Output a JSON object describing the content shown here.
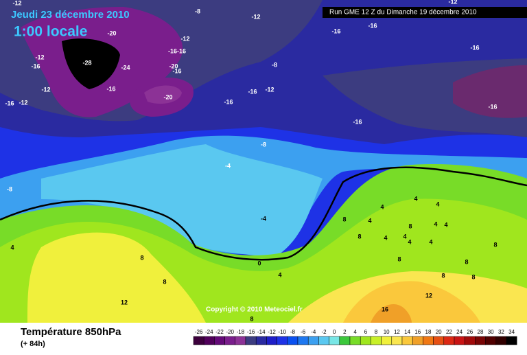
{
  "header": {
    "date": "Jeudi 23 décembre 2010",
    "time": "1:00 locale",
    "run": "Run GME 12 Z du Dimanche 19 décembre 2010",
    "copyright": "Copyright © 2010 Meteociel.fr"
  },
  "footer": {
    "title": "Température 850hPa",
    "lead": "(+ 84h)"
  },
  "legend": {
    "labels": [
      -26,
      -24,
      -22,
      -20,
      -18,
      -16,
      -14,
      -12,
      -10,
      -8,
      -6,
      -4,
      -2,
      0,
      2,
      4,
      6,
      8,
      10,
      12,
      14,
      16,
      18,
      20,
      22,
      24,
      26,
      28,
      30,
      32,
      34
    ],
    "colors": [
      "#3c003c",
      "#50005a",
      "#640a78",
      "#7a1e8c",
      "#8c3296",
      "#3c3c80",
      "#2a2aa0",
      "#1e1ec8",
      "#1e32e6",
      "#0a50f0",
      "#1e78f0",
      "#3ca0f0",
      "#5ac8f0",
      "#78e6e6",
      "#3cc83c",
      "#78dc28",
      "#a0e61e",
      "#c8f028",
      "#f0f03c",
      "#fae650",
      "#fac83c",
      "#f0a028",
      "#f07814",
      "#e65014",
      "#dc2814",
      "#c81414",
      "#a00a0a",
      "#780505",
      "#500000",
      "#300000",
      "#000000"
    ]
  },
  "contour_labels": [
    "-12",
    "-8",
    "-12",
    "-16",
    "-16",
    "-12",
    "-16",
    "-20",
    "-12",
    "-16-16",
    "-28",
    "-24",
    "-20",
    "-16",
    "-12",
    "-16",
    "-8",
    "-12",
    "-16",
    "-16",
    "-12",
    "-20",
    "-16",
    "-12",
    "-16",
    "-16",
    "-16",
    "-8",
    "-4",
    "-8",
    "-4",
    "4",
    "8",
    "0",
    "4",
    "8",
    "12",
    "8",
    "16",
    "12",
    "8",
    "4",
    "4",
    "4",
    "8",
    "4",
    "8",
    "4",
    "4",
    "8",
    "4",
    "4",
    "4",
    "4",
    "8",
    "8",
    "8",
    "8"
  ]
}
